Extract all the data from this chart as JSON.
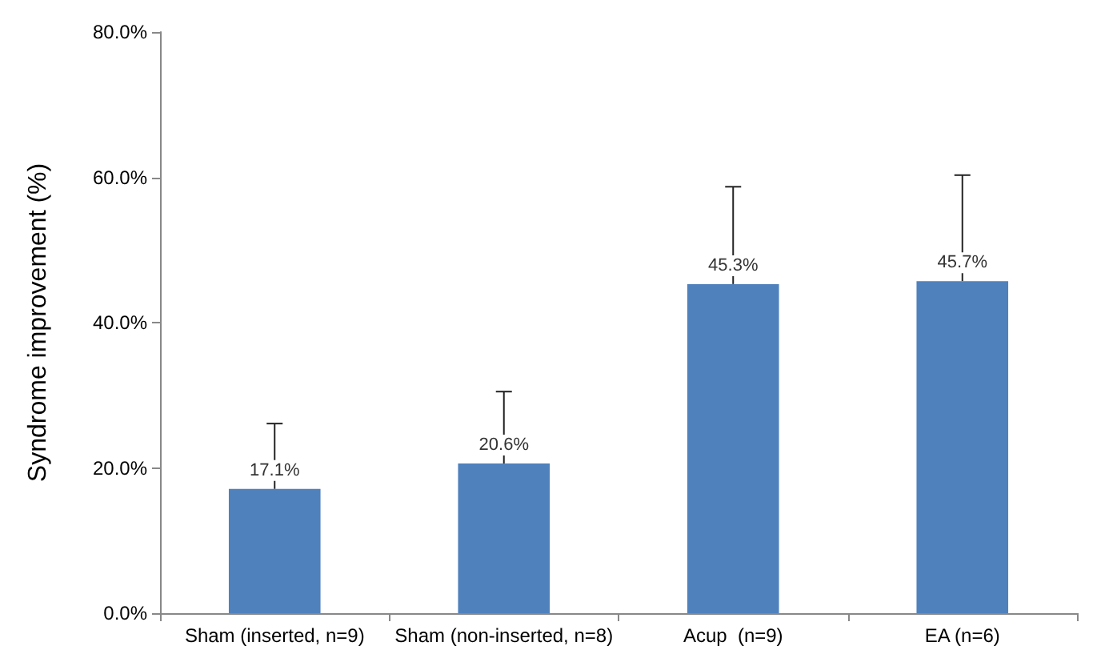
{
  "chart_data": {
    "type": "bar",
    "ylabel": "Syndrome improvement (%)",
    "categories": [
      "Sham (inserted, n=9)",
      "Sham (non-inserted, n=8)",
      "Acup  (n=9)",
      "EA (n=6)"
    ],
    "values": [
      17.1,
      20.6,
      45.3,
      45.7
    ],
    "value_labels": [
      "17.1%",
      "20.6%",
      "45.3%",
      "45.7%"
    ],
    "errors": [
      [
        17.1,
        26.1
      ],
      [
        20.6,
        30.5
      ],
      [
        45.3,
        58.7
      ],
      [
        45.7,
        60.3
      ]
    ],
    "color": "#4f81bd",
    "ylim": [
      0,
      80
    ],
    "yticks": [
      {
        "value": 0,
        "label": "0.0%"
      },
      {
        "value": 20,
        "label": "20.0%"
      },
      {
        "value": 40,
        "label": "40.0%"
      },
      {
        "value": 60,
        "label": "60.0%"
      },
      {
        "value": 80,
        "label": "80.0%"
      }
    ],
    "grid": false
  }
}
